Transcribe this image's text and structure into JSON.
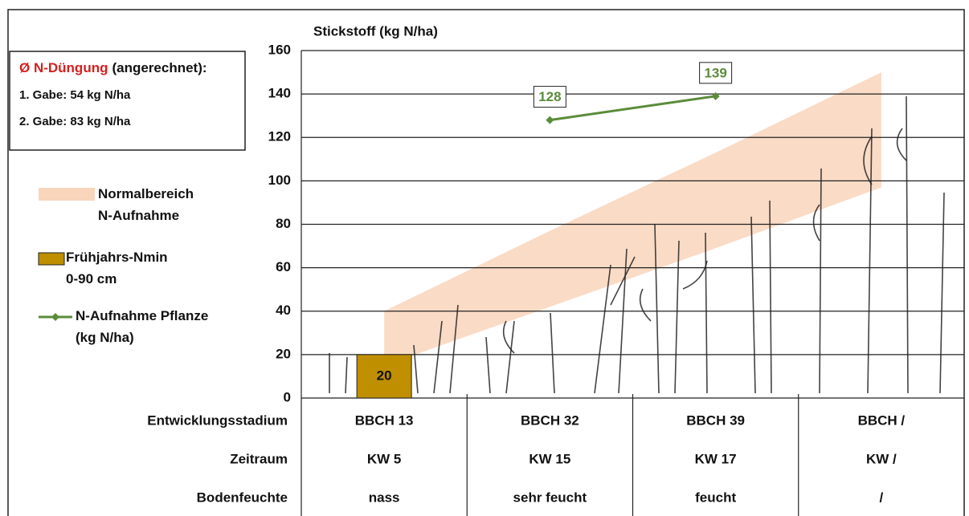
{
  "chart_data": {
    "type": "combo",
    "y_axis_label": "Stickstoff (kg N/ha)",
    "ylim": [
      0,
      160
    ],
    "yticks": [
      0,
      20,
      40,
      60,
      80,
      100,
      120,
      140,
      160
    ],
    "grid": true,
    "categories_label": "Entwicklungsstadium",
    "categories": [
      "BBCH 13",
      "BBCH 32",
      "BBCH 39",
      "BBCH /"
    ],
    "extra_rows": [
      {
        "label": "Zeitraum",
        "values": [
          "KW 5",
          "KW 15",
          "KW 17",
          "KW /"
        ]
      },
      {
        "label": "Bodenfeuchte",
        "values": [
          "nass",
          "sehr feucht",
          "feucht",
          "/"
        ]
      }
    ],
    "info_box": {
      "highlight": "Ø N-Düngung",
      "title": "(angerechnet):",
      "lines": [
        "1. Gabe: 54 kg N/ha",
        "2. Gabe: 83 kg N/ha"
      ]
    },
    "band": {
      "name": "Normalbereich\nN-Aufnahme",
      "color": "#f9d5bc",
      "lower": [
        15,
        42,
        69,
        97
      ],
      "upper": [
        40,
        77,
        113,
        150
      ]
    },
    "series": [
      {
        "name": "Frühjahrs-Nmin\n0-90 cm",
        "kind": "bar",
        "color": "#bf8f00",
        "values": [
          20,
          null,
          null,
          null
        ]
      },
      {
        "name": "N-Aufnahme Pflanze\n(kg N/ha)",
        "kind": "line",
        "color": "#5b8c3a",
        "values": [
          null,
          128,
          139,
          null
        ]
      }
    ],
    "data_labels": true
  }
}
